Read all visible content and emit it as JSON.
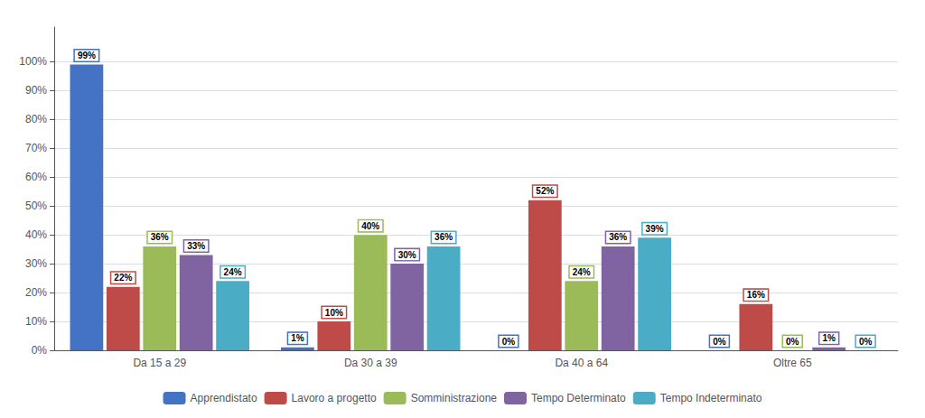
{
  "chart_data": {
    "type": "bar",
    "categories": [
      "Da 15 a 29",
      "Da 30 a 39",
      "Da 40 a 64",
      "Oltre 65"
    ],
    "series": [
      {
        "name": "Apprendistato",
        "color": "#4472C4",
        "values": [
          99,
          1,
          0,
          0
        ],
        "value_labels": [
          "99%",
          "1%",
          "0%",
          "0%"
        ]
      },
      {
        "name": "Lavoro a progetto",
        "color": "#BE4B48",
        "values": [
          22,
          10,
          52,
          16
        ],
        "value_labels": [
          "22%",
          "10%",
          "52%",
          "16%"
        ]
      },
      {
        "name": "Somministrazione",
        "color": "#9BBB59",
        "values": [
          36,
          40,
          24,
          0
        ],
        "value_labels": [
          "36%",
          "40%",
          "24%",
          "0%"
        ]
      },
      {
        "name": "Tempo Determinato",
        "color": "#8064A2",
        "values": [
          33,
          30,
          36,
          1
        ],
        "value_labels": [
          "33%",
          "30%",
          "36%",
          "1%"
        ]
      },
      {
        "name": "Tempo Indeterminato",
        "color": "#4BACC6",
        "values": [
          24,
          36,
          39,
          0
        ],
        "value_labels": [
          "24%",
          "36%",
          "39%",
          "0%"
        ]
      }
    ],
    "ylim": [
      0,
      112
    ],
    "yticks": [
      {
        "value": 0,
        "label": "0%"
      },
      {
        "value": 10,
        "label": "10%"
      },
      {
        "value": 20,
        "label": "20%"
      },
      {
        "value": 30,
        "label": "30%"
      },
      {
        "value": 40,
        "label": "40%"
      },
      {
        "value": 50,
        "label": "50%"
      },
      {
        "value": 60,
        "label": "60%"
      },
      {
        "value": 70,
        "label": "70%"
      },
      {
        "value": 80,
        "label": "80%"
      },
      {
        "value": 90,
        "label": "90%"
      },
      {
        "value": 100,
        "label": "100%"
      }
    ],
    "grid": true,
    "legend": "bottom",
    "data_labels": true
  }
}
